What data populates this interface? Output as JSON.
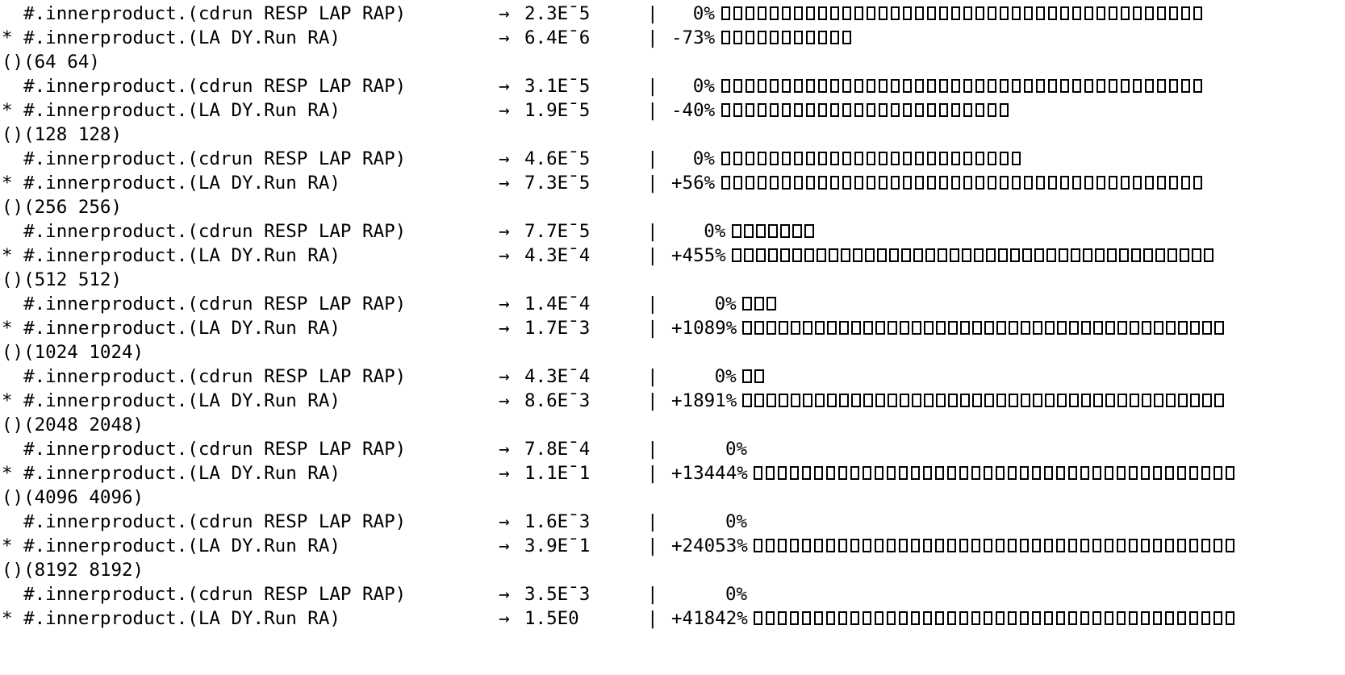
{
  "rows": [
    {
      "kind": "expr",
      "text": "  #.innerproduct.(cdrun RESP LAP RAP)",
      "arrow": "→",
      "value": "2.3E¯5",
      "bar": "|",
      "pct": "0%",
      "boxes": 40
    },
    {
      "kind": "expr",
      "text": "* #.innerproduct.(LA DY.Run RA)",
      "arrow": "→",
      "value": "6.4E¯6",
      "bar": "|",
      "pct": "-73%",
      "boxes": 11
    },
    {
      "kind": "header",
      "text": "()(64 64)"
    },
    {
      "kind": "expr",
      "text": "  #.innerproduct.(cdrun RESP LAP RAP)",
      "arrow": "→",
      "value": "3.1E¯5",
      "bar": "|",
      "pct": "0%",
      "boxes": 40
    },
    {
      "kind": "expr",
      "text": "* #.innerproduct.(LA DY.Run RA)",
      "arrow": "→",
      "value": "1.9E¯5",
      "bar": "|",
      "pct": "-40%",
      "boxes": 24
    },
    {
      "kind": "header",
      "text": "()(128 128)"
    },
    {
      "kind": "expr",
      "text": "  #.innerproduct.(cdrun RESP LAP RAP)",
      "arrow": "→",
      "value": "4.6E¯5",
      "bar": "|",
      "pct": "0%",
      "boxes": 25
    },
    {
      "kind": "expr",
      "text": "* #.innerproduct.(LA DY.Run RA)",
      "arrow": "→",
      "value": "7.3E¯5",
      "bar": "|",
      "pct": "+56%",
      "boxes": 40
    },
    {
      "kind": "header",
      "text": "()(256 256)"
    },
    {
      "kind": "expr",
      "text": "  #.innerproduct.(cdrun RESP LAP RAP)",
      "arrow": "→",
      "value": "7.7E¯5",
      "bar": "|",
      "pct": "0%",
      "boxes": 7
    },
    {
      "kind": "expr",
      "text": "* #.innerproduct.(LA DY.Run RA)",
      "arrow": "→",
      "value": "4.3E¯4",
      "bar": "|",
      "pct": "+455%",
      "boxes": 40
    },
    {
      "kind": "header",
      "text": "()(512 512)"
    },
    {
      "kind": "expr",
      "text": "  #.innerproduct.(cdrun RESP LAP RAP)",
      "arrow": "→",
      "value": "1.4E¯4",
      "bar": "|",
      "pct": "0%",
      "boxes": 3
    },
    {
      "kind": "expr",
      "text": "* #.innerproduct.(LA DY.Run RA)",
      "arrow": "→",
      "value": "1.7E¯3",
      "bar": "|",
      "pct": "+1089%",
      "boxes": 40
    },
    {
      "kind": "header",
      "text": "()(1024 1024)"
    },
    {
      "kind": "expr",
      "text": "  #.innerproduct.(cdrun RESP LAP RAP)",
      "arrow": "→",
      "value": "4.3E¯4",
      "bar": "|",
      "pct": "0%",
      "boxes": 2
    },
    {
      "kind": "expr",
      "text": "* #.innerproduct.(LA DY.Run RA)",
      "arrow": "→",
      "value": "8.6E¯3",
      "bar": "|",
      "pct": "+1891%",
      "boxes": 40
    },
    {
      "kind": "header",
      "text": "()(2048 2048)"
    },
    {
      "kind": "expr",
      "text": "  #.innerproduct.(cdrun RESP LAP RAP)",
      "arrow": "→",
      "value": "7.8E¯4",
      "bar": "|",
      "pct": "0%",
      "boxes": 0
    },
    {
      "kind": "expr",
      "text": "* #.innerproduct.(LA DY.Run RA)",
      "arrow": "→",
      "value": "1.1E¯1",
      "bar": "|",
      "pct": "+13444%",
      "boxes": 40
    },
    {
      "kind": "header",
      "text": "()(4096 4096)"
    },
    {
      "kind": "expr",
      "text": "  #.innerproduct.(cdrun RESP LAP RAP)",
      "arrow": "→",
      "value": "1.6E¯3",
      "bar": "|",
      "pct": "0%",
      "boxes": 0
    },
    {
      "kind": "expr",
      "text": "* #.innerproduct.(LA DY.Run RA)",
      "arrow": "→",
      "value": "3.9E¯1",
      "bar": "|",
      "pct": "+24053%",
      "boxes": 40
    },
    {
      "kind": "header",
      "text": "()(8192 8192)"
    },
    {
      "kind": "expr",
      "text": "  #.innerproduct.(cdrun RESP LAP RAP)",
      "arrow": "→",
      "value": "3.5E¯3",
      "bar": "|",
      "pct": "0%",
      "boxes": 0
    },
    {
      "kind": "expr",
      "text": "* #.innerproduct.(LA DY.Run RA)",
      "arrow": "→",
      "value": "1.5E0",
      "bar": "|",
      "pct": "+41842%",
      "boxes": 40
    }
  ]
}
